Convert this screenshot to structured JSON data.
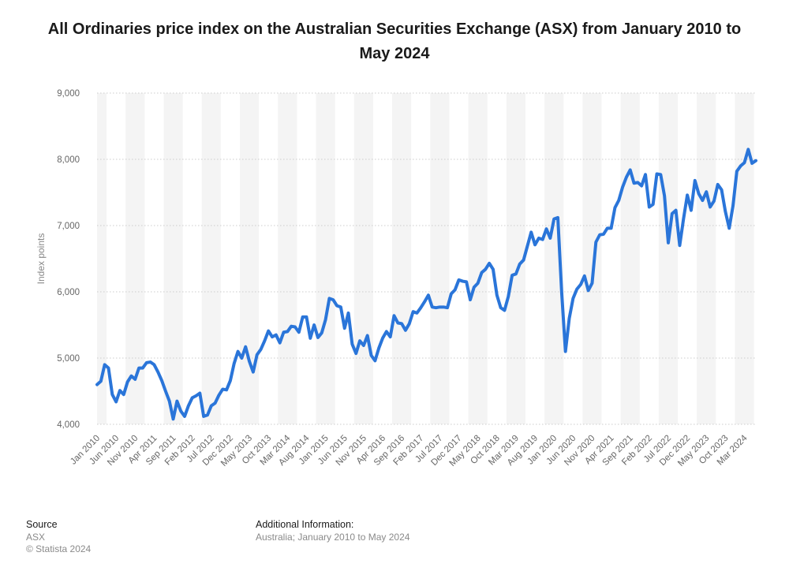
{
  "title": "All Ordinaries price index on the Australian Securities Exchange (ASX) from January 2010 to May 2024",
  "footer": {
    "source_heading": "Source",
    "source_name": "ASX",
    "copyright": "© Statista 2024",
    "additional_heading": "Additional Information:",
    "additional_text": "Australia; January 2010 to May 2024"
  },
  "colors": {
    "line": "#2a75d9",
    "band": "#f4f4f4",
    "grid": "#cccccc",
    "text": "#666666"
  },
  "chart_data": {
    "type": "line",
    "title": "All Ordinaries price index on the Australian Securities Exchange (ASX) from January 2010 to May 2024",
    "xlabel": "",
    "ylabel": "Index points",
    "ylim": [
      4000,
      9000
    ],
    "yticks": [
      "4,000",
      "5,000",
      "6,000",
      "7,000",
      "8,000",
      "9,000"
    ],
    "ytick_values": [
      4000,
      5000,
      6000,
      7000,
      8000,
      9000
    ],
    "grid": true,
    "legend": "none",
    "x_tick_labels": [
      "Jan 2010",
      "Jun 2010",
      "Nov 2010",
      "Apr 2011",
      "Sep 2011",
      "Feb 2012",
      "Jul 2012",
      "Dec 2012",
      "May 2013",
      "Oct 2013",
      "Mar 2014",
      "Aug 2014",
      "Jan 2015",
      "Jun 2015",
      "Nov 2015",
      "Apr 2016",
      "Sep 2016",
      "Feb 2017",
      "Jul 2017",
      "Dec 2017",
      "May 2018",
      "Oct 2018",
      "Mar 2019",
      "Aug 2019",
      "Jan 2020",
      "Jun 2020",
      "Nov 2020",
      "Apr 2021",
      "Sep 2021",
      "Feb 2022",
      "Jul 2022",
      "Dec 2022",
      "May 2023",
      "Oct 2023",
      "Mar 2024"
    ],
    "series": [
      {
        "start": "Jan 2010",
        "end": "May 2024",
        "frequency": "monthly",
        "values": [
          4600,
          4650,
          4900,
          4850,
          4450,
          4340,
          4510,
          4450,
          4640,
          4730,
          4680,
          4850,
          4850,
          4930,
          4940,
          4900,
          4790,
          4660,
          4500,
          4350,
          4080,
          4350,
          4200,
          4120,
          4280,
          4400,
          4430,
          4470,
          4120,
          4140,
          4280,
          4320,
          4440,
          4530,
          4520,
          4660,
          4920,
          5100,
          5000,
          5170,
          4950,
          4790,
          5050,
          5130,
          5260,
          5410,
          5320,
          5350,
          5230,
          5390,
          5400,
          5480,
          5470,
          5390,
          5620,
          5620,
          5300,
          5500,
          5310,
          5380,
          5580,
          5900,
          5880,
          5790,
          5770,
          5450,
          5680,
          5210,
          5070,
          5260,
          5190,
          5340,
          5040,
          4960,
          5150,
          5300,
          5400,
          5320,
          5640,
          5530,
          5520,
          5420,
          5520,
          5700,
          5680,
          5760,
          5850,
          5950,
          5770,
          5760,
          5770,
          5770,
          5760,
          5970,
          6030,
          6180,
          6160,
          6150,
          5880,
          6070,
          6130,
          6290,
          6340,
          6430,
          6340,
          5950,
          5760,
          5720,
          5930,
          6250,
          6270,
          6420,
          6480,
          6690,
          6900,
          6710,
          6810,
          6790,
          6950,
          6810,
          7100,
          7120,
          6000,
          5100,
          5600,
          5900,
          6040,
          6110,
          6240,
          6020,
          6130,
          6750,
          6860,
          6870,
          6960,
          6960,
          7270,
          7380,
          7580,
          7730,
          7840,
          7640,
          7650,
          7600,
          7770,
          7280,
          7320,
          7780,
          7770,
          7450,
          6740,
          7180,
          7230,
          6700,
          7100,
          7460,
          7230,
          7680,
          7480,
          7380,
          7510,
          7280,
          7370,
          7620,
          7540,
          7210,
          6960,
          7300,
          7820,
          7900,
          7950,
          8150,
          7940,
          7980
        ]
      }
    ]
  }
}
